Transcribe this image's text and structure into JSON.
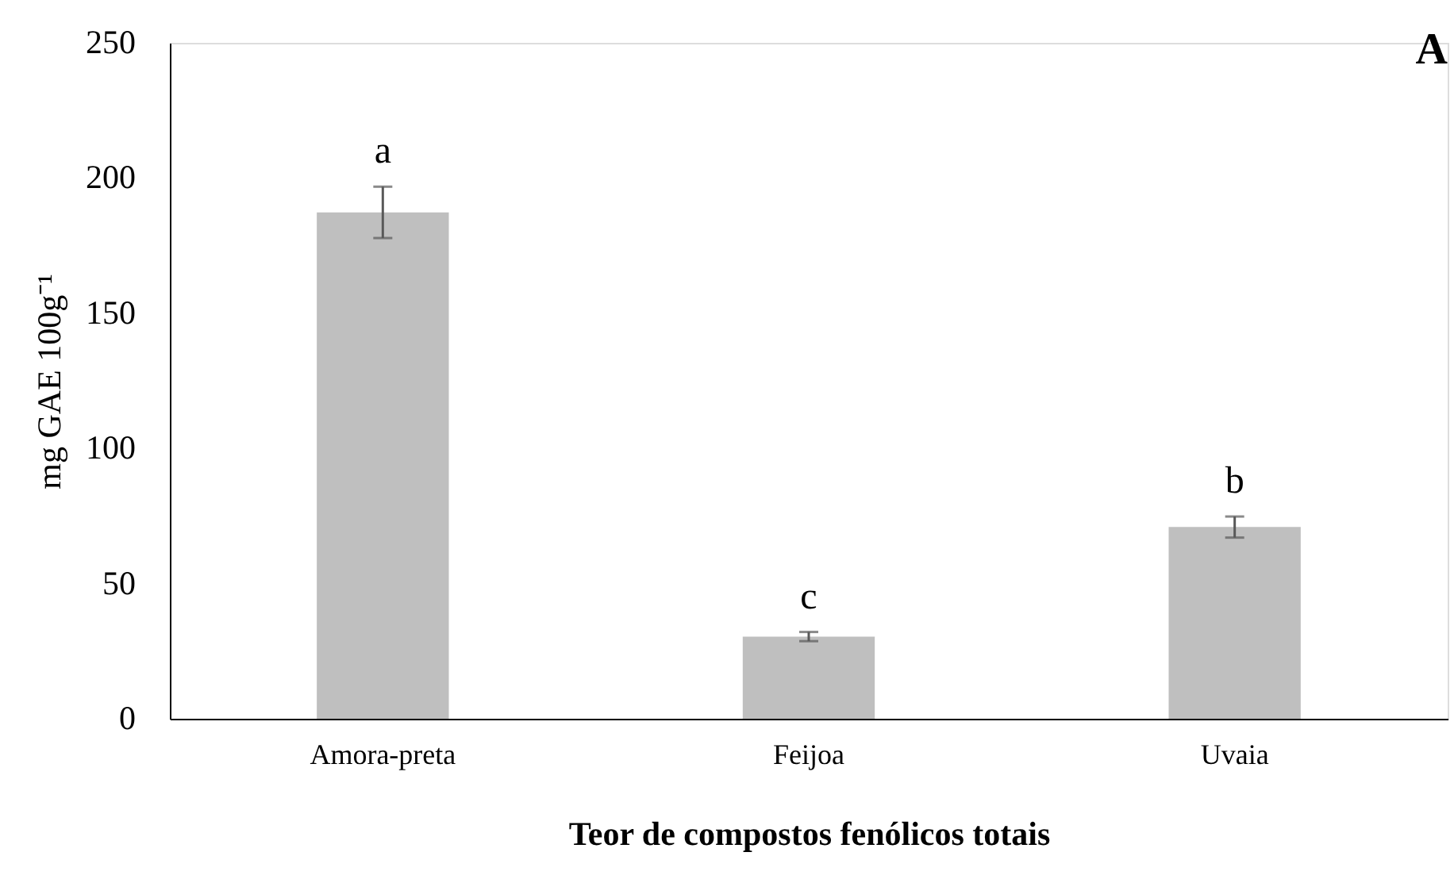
{
  "chart_data": {
    "type": "bar",
    "xlabel": "Teor de compostos fenólicos totais",
    "ylabel": "mg GAE 100g⁻¹",
    "categories": [
      "Amora-preta",
      "Feijoa",
      "Uvaia"
    ],
    "values": [
      187.3,
      30.4,
      70.9
    ],
    "errors": [
      9.5,
      1.7,
      3.9
    ],
    "color": "#bfbfbf",
    "ylim": [
      0,
      250
    ],
    "yticks": [
      0,
      50,
      100,
      150,
      200,
      250
    ],
    "grid": false,
    "title": "A",
    "annotations": [
      "a",
      "c",
      "b"
    ]
  }
}
